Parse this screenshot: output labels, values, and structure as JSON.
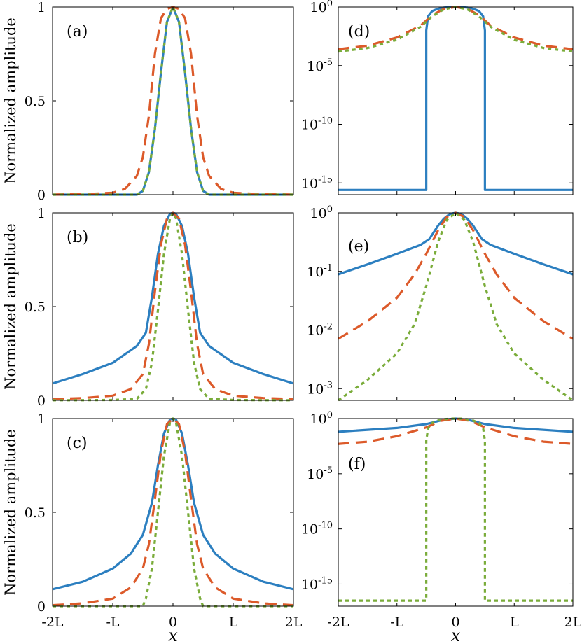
{
  "colors": {
    "series1": "#2c7fc0",
    "series2": "#dc5a2a",
    "series3": "#7aac3a",
    "axis": "#000000"
  },
  "x_tick_labels": [
    "-2L",
    "-L",
    "0",
    "L",
    "2L"
  ],
  "xlabel": "x",
  "ylabel": "Normalized amplitude",
  "chart_data": [
    {
      "panel": "(a)",
      "type": "line",
      "yscale": "linear",
      "xlim": [
        -2,
        2
      ],
      "ylim": [
        0,
        1
      ],
      "yticks": [
        "0",
        "0.5",
        "1"
      ],
      "series": [
        {
          "name": "solid",
          "style": "solid",
          "x": [
            -2,
            -0.6,
            -0.5,
            -0.4,
            -0.3,
            -0.2,
            -0.1,
            0,
            0.1,
            0.2,
            0.3,
            0.4,
            0.5,
            0.6,
            2
          ],
          "y": [
            0,
            0,
            0.02,
            0.12,
            0.35,
            0.65,
            0.92,
            1,
            0.92,
            0.65,
            0.35,
            0.12,
            0.02,
            0,
            0
          ]
        },
        {
          "name": "dashed",
          "style": "dashed",
          "x": [
            -2,
            -1.3,
            -1.0,
            -0.8,
            -0.6,
            -0.5,
            -0.4,
            -0.3,
            -0.2,
            -0.1,
            0,
            0.1,
            0.2,
            0.3,
            0.4,
            0.5,
            0.6,
            0.8,
            1.0,
            1.3,
            2
          ],
          "y": [
            0,
            0.005,
            0.01,
            0.03,
            0.1,
            0.2,
            0.42,
            0.75,
            0.94,
            0.99,
            1,
            0.99,
            0.94,
            0.75,
            0.42,
            0.2,
            0.1,
            0.03,
            0.01,
            0.005,
            0
          ]
        },
        {
          "name": "dotted",
          "style": "dotted",
          "x": [
            -2,
            -0.6,
            -0.5,
            -0.4,
            -0.3,
            -0.2,
            -0.1,
            0,
            0.1,
            0.2,
            0.3,
            0.4,
            0.5,
            0.6,
            2
          ],
          "y": [
            0,
            0,
            0.02,
            0.12,
            0.35,
            0.65,
            0.92,
            1,
            0.92,
            0.65,
            0.35,
            0.12,
            0.02,
            0,
            0
          ]
        }
      ]
    },
    {
      "panel": "(b)",
      "type": "line",
      "yscale": "linear",
      "xlim": [
        -2,
        2
      ],
      "ylim": [
        0,
        1
      ],
      "yticks": [
        "0",
        "0.5",
        "1"
      ],
      "series": [
        {
          "name": "solid",
          "style": "solid",
          "x": [
            -2,
            -1.5,
            -1.0,
            -0.6,
            -0.45,
            -0.35,
            -0.25,
            -0.15,
            -0.05,
            0,
            0.05,
            0.15,
            0.25,
            0.35,
            0.45,
            0.6,
            1.0,
            1.5,
            2
          ],
          "y": [
            0.09,
            0.14,
            0.2,
            0.29,
            0.36,
            0.55,
            0.78,
            0.93,
            0.995,
            1,
            0.995,
            0.93,
            0.78,
            0.55,
            0.36,
            0.29,
            0.2,
            0.14,
            0.09
          ]
        },
        {
          "name": "dashed",
          "style": "dashed",
          "x": [
            -2,
            -1.5,
            -1.0,
            -0.7,
            -0.5,
            -0.4,
            -0.3,
            -0.2,
            -0.1,
            0,
            0.1,
            0.2,
            0.3,
            0.4,
            0.5,
            0.7,
            1.0,
            1.5,
            2
          ],
          "y": [
            0.007,
            0.012,
            0.025,
            0.06,
            0.14,
            0.3,
            0.58,
            0.83,
            0.97,
            1,
            0.97,
            0.83,
            0.58,
            0.3,
            0.14,
            0.06,
            0.025,
            0.012,
            0.007
          ]
        },
        {
          "name": "dotted",
          "style": "dotted",
          "x": [
            -2,
            -1.5,
            -1.0,
            -0.6,
            -0.45,
            -0.35,
            -0.25,
            -0.15,
            -0.05,
            0,
            0.05,
            0.15,
            0.25,
            0.35,
            0.45,
            0.6,
            1.0,
            1.5,
            2
          ],
          "y": [
            0.0006,
            0.001,
            0.002,
            0.008,
            0.06,
            0.2,
            0.48,
            0.78,
            0.97,
            1,
            0.97,
            0.78,
            0.48,
            0.2,
            0.06,
            0.008,
            0.002,
            0.001,
            0.0006
          ]
        }
      ]
    },
    {
      "panel": "(c)",
      "type": "line",
      "yscale": "linear",
      "xlim": [
        -2,
        2
      ],
      "ylim": [
        0,
        1
      ],
      "yticks": [
        "0",
        "0.5",
        "1"
      ],
      "series": [
        {
          "name": "solid",
          "style": "solid",
          "x": [
            -2,
            -1.5,
            -1.0,
            -0.7,
            -0.5,
            -0.35,
            -0.25,
            -0.15,
            -0.05,
            0,
            0.05,
            0.15,
            0.25,
            0.35,
            0.5,
            0.7,
            1.0,
            1.5,
            2
          ],
          "y": [
            0.09,
            0.13,
            0.2,
            0.28,
            0.38,
            0.55,
            0.75,
            0.92,
            0.995,
            1,
            0.995,
            0.92,
            0.75,
            0.55,
            0.38,
            0.28,
            0.2,
            0.13,
            0.09
          ]
        },
        {
          "name": "dashed",
          "style": "dashed",
          "x": [
            -2,
            -1.5,
            -1.0,
            -0.7,
            -0.5,
            -0.4,
            -0.3,
            -0.2,
            -0.1,
            0,
            0.1,
            0.2,
            0.3,
            0.4,
            0.5,
            0.7,
            1.0,
            1.5,
            2
          ],
          "y": [
            0.005,
            0.015,
            0.04,
            0.1,
            0.2,
            0.33,
            0.57,
            0.82,
            0.97,
            1,
            0.97,
            0.82,
            0.57,
            0.33,
            0.2,
            0.1,
            0.04,
            0.015,
            0.005
          ]
        },
        {
          "name": "dotted",
          "style": "dotted",
          "x": [
            -2,
            -0.5,
            -0.45,
            -0.35,
            -0.25,
            -0.15,
            -0.05,
            0,
            0.05,
            0.15,
            0.25,
            0.35,
            0.45,
            0.5,
            2
          ],
          "y": [
            0,
            0,
            0.04,
            0.2,
            0.5,
            0.8,
            0.98,
            1,
            0.98,
            0.8,
            0.5,
            0.2,
            0.04,
            0,
            0
          ]
        }
      ]
    },
    {
      "panel": "(d)",
      "type": "line",
      "yscale": "log",
      "xlim": [
        -2,
        2
      ],
      "ylim_exp": [
        -16,
        0
      ],
      "yticks": [
        {
          "base": "10",
          "exp": "0"
        },
        {
          "base": "10",
          "exp": "-5"
        },
        {
          "base": "10",
          "exp": "-10"
        },
        {
          "base": "10",
          "exp": "-15"
        }
      ],
      "series": [
        {
          "name": "solid",
          "style": "solid",
          "x": [
            -2,
            -0.5,
            -0.5,
            -0.47,
            -0.4,
            -0.3,
            -0.2,
            -0.1,
            0,
            0.1,
            0.2,
            0.3,
            0.4,
            0.47,
            0.5,
            0.5,
            2
          ],
          "logy": [
            -15.6,
            -15.6,
            -2.0,
            -0.8,
            -0.35,
            -0.15,
            -0.05,
            -0.01,
            0,
            -0.01,
            -0.05,
            -0.15,
            -0.35,
            -0.8,
            -2.0,
            -15.6,
            -15.6
          ]
        },
        {
          "name": "dashed",
          "style": "dashed",
          "x": [
            -2,
            -1.5,
            -1.0,
            -0.6,
            -0.4,
            -0.2,
            0,
            0.2,
            0.4,
            0.6,
            1.0,
            1.5,
            2
          ],
          "logy": [
            -3.6,
            -3.3,
            -2.6,
            -1.6,
            -0.7,
            -0.15,
            0,
            -0.15,
            -0.7,
            -1.6,
            -2.6,
            -3.3,
            -3.6
          ]
        },
        {
          "name": "dotted",
          "style": "dotted",
          "x": [
            -2,
            -1.5,
            -1.0,
            -0.6,
            -0.4,
            -0.2,
            0,
            0.2,
            0.4,
            0.6,
            1.0,
            1.5,
            2
          ],
          "logy": [
            -3.8,
            -3.5,
            -2.8,
            -1.7,
            -0.8,
            -0.2,
            0,
            -0.2,
            -0.8,
            -1.7,
            -2.8,
            -3.5,
            -3.8
          ]
        }
      ]
    },
    {
      "panel": "(e)",
      "type": "line",
      "yscale": "log",
      "xlim": [
        -2,
        2
      ],
      "ylim_exp": [
        -3.2,
        0
      ],
      "yticks": [
        {
          "base": "10",
          "exp": "0"
        },
        {
          "base": "10",
          "exp": "-1"
        },
        {
          "base": "10",
          "exp": "-2"
        },
        {
          "base": "10",
          "exp": "-3"
        }
      ],
      "series": [
        {
          "name": "solid",
          "style": "solid",
          "x": [
            -2,
            -1.5,
            -1.0,
            -0.6,
            -0.45,
            -0.3,
            -0.2,
            -0.1,
            0,
            0.1,
            0.2,
            0.3,
            0.45,
            0.6,
            1.0,
            1.5,
            2
          ],
          "logy": [
            -1.05,
            -0.88,
            -0.7,
            -0.55,
            -0.45,
            -0.22,
            -0.1,
            -0.02,
            0,
            -0.02,
            -0.1,
            -0.22,
            -0.45,
            -0.55,
            -0.7,
            -0.88,
            -1.05
          ]
        },
        {
          "name": "dashed",
          "style": "dashed",
          "x": [
            -2,
            -1.5,
            -1.0,
            -0.7,
            -0.5,
            -0.3,
            -0.15,
            0,
            0.15,
            0.3,
            0.5,
            0.7,
            1.0,
            1.5,
            2
          ],
          "logy": [
            -2.15,
            -1.85,
            -1.45,
            -1.05,
            -0.7,
            -0.3,
            -0.07,
            0,
            -0.07,
            -0.3,
            -0.7,
            -1.05,
            -1.45,
            -1.85,
            -2.15
          ]
        },
        {
          "name": "dotted",
          "style": "dotted",
          "x": [
            -2,
            -1.5,
            -1.0,
            -0.7,
            -0.5,
            -0.3,
            -0.15,
            0,
            0.15,
            0.3,
            0.5,
            0.7,
            1.0,
            1.5,
            2
          ],
          "logy": [
            -3.2,
            -2.85,
            -2.4,
            -1.9,
            -1.25,
            -0.5,
            -0.12,
            0,
            -0.12,
            -0.5,
            -1.25,
            -1.9,
            -2.4,
            -2.85,
            -3.2
          ]
        }
      ]
    },
    {
      "panel": "(f)",
      "type": "line",
      "yscale": "log",
      "xlim": [
        -2,
        2
      ],
      "ylim_exp": [
        -17,
        0
      ],
      "yticks": [
        {
          "base": "10",
          "exp": "0"
        },
        {
          "base": "10",
          "exp": "-5"
        },
        {
          "base": "10",
          "exp": "-10"
        },
        {
          "base": "10",
          "exp": "-15"
        }
      ],
      "series": [
        {
          "name": "solid",
          "style": "solid",
          "x": [
            -2,
            -1.0,
            -0.5,
            -0.2,
            0,
            0.2,
            0.5,
            1.0,
            2
          ],
          "logy": [
            -1.2,
            -0.85,
            -0.5,
            -0.1,
            0,
            -0.1,
            -0.5,
            -0.85,
            -1.2
          ]
        },
        {
          "name": "dashed",
          "style": "dashed",
          "x": [
            -2,
            -1.5,
            -1.0,
            -0.5,
            -0.25,
            0,
            0.25,
            0.5,
            1.0,
            1.5,
            2
          ],
          "logy": [
            -2.3,
            -2.1,
            -1.6,
            -0.8,
            -0.2,
            0,
            -0.2,
            -0.8,
            -1.6,
            -2.1,
            -2.3
          ]
        },
        {
          "name": "dotted",
          "style": "dotted",
          "x": [
            -2,
            -0.5,
            -0.5,
            -0.47,
            -0.4,
            -0.3,
            -0.2,
            -0.1,
            0,
            0.1,
            0.2,
            0.3,
            0.4,
            0.47,
            0.5,
            0.5,
            2
          ],
          "logy": [
            -16.5,
            -16.5,
            -2.0,
            -0.9,
            -0.4,
            -0.18,
            -0.06,
            -0.01,
            0,
            -0.01,
            -0.06,
            -0.18,
            -0.4,
            -0.9,
            -2.0,
            -16.5,
            -16.5
          ]
        }
      ]
    }
  ]
}
